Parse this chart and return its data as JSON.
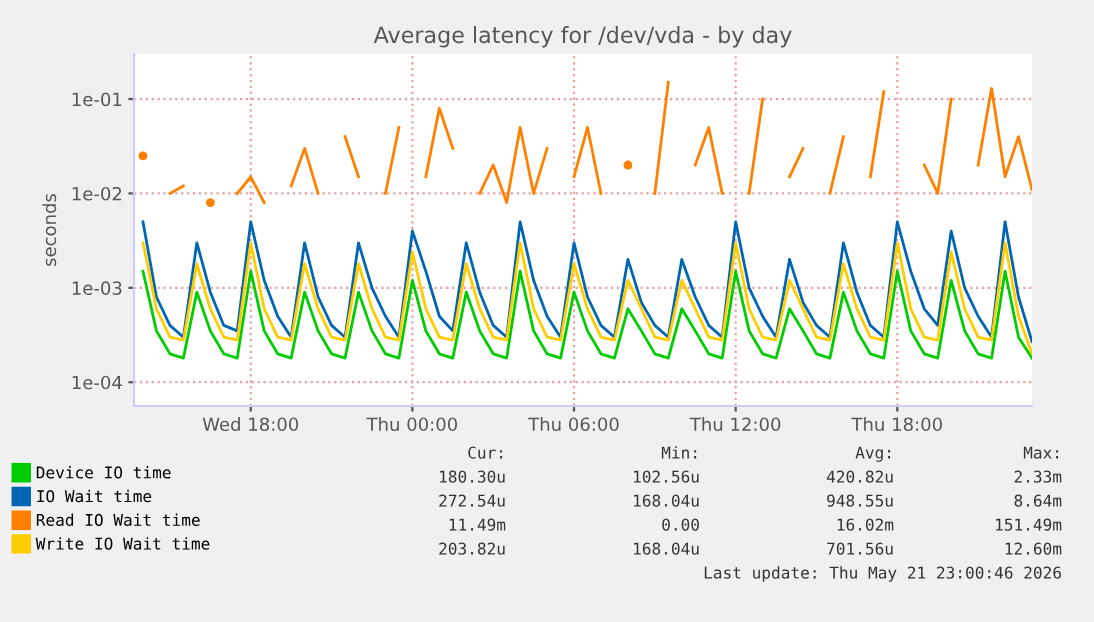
{
  "chart_data": {
    "type": "line",
    "title": "Average latency for /dev/vda - by day",
    "ylabel": "seconds",
    "log": "y",
    "grid": true,
    "legend": "bottom",
    "marker": "none",
    "line_style": "solid",
    "x": [
      "2026-05-20T14:00",
      "2026-05-20T14:30",
      "2026-05-20T15:00",
      "2026-05-20T15:30",
      "2026-05-20T16:00",
      "2026-05-20T16:30",
      "2026-05-20T17:00",
      "2026-05-20T17:30",
      "2026-05-20T18:00",
      "2026-05-20T18:30",
      "2026-05-20T19:00",
      "2026-05-20T19:30",
      "2026-05-20T20:00",
      "2026-05-20T20:30",
      "2026-05-20T21:00",
      "2026-05-20T21:30",
      "2026-05-20T22:00",
      "2026-05-20T22:30",
      "2026-05-20T23:00",
      "2026-05-20T23:30",
      "2026-05-21T00:00",
      "2026-05-21T00:30",
      "2026-05-21T01:00",
      "2026-05-21T01:30",
      "2026-05-21T02:00",
      "2026-05-21T02:30",
      "2026-05-21T03:00",
      "2026-05-21T03:30",
      "2026-05-21T04:00",
      "2026-05-21T04:30",
      "2026-05-21T05:00",
      "2026-05-21T05:30",
      "2026-05-21T06:00",
      "2026-05-21T06:30",
      "2026-05-21T07:00",
      "2026-05-21T07:30",
      "2026-05-21T08:00",
      "2026-05-21T08:30",
      "2026-05-21T09:00",
      "2026-05-21T09:30",
      "2026-05-21T10:00",
      "2026-05-21T10:30",
      "2026-05-21T11:00",
      "2026-05-21T11:30",
      "2026-05-21T12:00",
      "2026-05-21T12:30",
      "2026-05-21T13:00",
      "2026-05-21T13:30",
      "2026-05-21T14:00",
      "2026-05-21T14:30",
      "2026-05-21T15:00",
      "2026-05-21T15:30",
      "2026-05-21T16:00",
      "2026-05-21T16:30",
      "2026-05-21T17:00",
      "2026-05-21T17:30",
      "2026-05-21T18:00",
      "2026-05-21T18:30",
      "2026-05-21T19:00",
      "2026-05-21T19:30",
      "2026-05-21T20:00",
      "2026-05-21T20:30",
      "2026-05-21T21:00",
      "2026-05-21T21:30",
      "2026-05-21T22:00",
      "2026-05-21T22:30",
      "2026-05-21T23:00"
    ],
    "xlim": [
      "2026-05-20T13:40",
      "2026-05-21T23:00"
    ],
    "xticks": [
      {
        "value": "2026-05-20T18:00",
        "label": "Wed 18:00"
      },
      {
        "value": "2026-05-21T00:00",
        "label": "Thu 00:00"
      },
      {
        "value": "2026-05-21T06:00",
        "label": "Thu 06:00"
      },
      {
        "value": "2026-05-21T12:00",
        "label": "Thu 12:00"
      },
      {
        "value": "2026-05-21T18:00",
        "label": "Thu 18:00"
      }
    ],
    "ylim": [
      5.6e-05,
      0.3
    ],
    "yticks": [
      {
        "value": 0.0001,
        "label": "1e-04"
      },
      {
        "value": 0.001,
        "label": "1e-03"
      },
      {
        "value": 0.01,
        "label": "1e-02"
      },
      {
        "value": 0.1,
        "label": "1e-01"
      }
    ],
    "series": [
      {
        "name": "Device IO time",
        "color": "#00cc00",
        "values": [
          0.0015,
          0.00035,
          0.0002,
          0.00018,
          0.0009,
          0.00035,
          0.0002,
          0.00018,
          0.0015,
          0.00035,
          0.0002,
          0.00018,
          0.0009,
          0.00035,
          0.0002,
          0.00018,
          0.0009,
          0.00035,
          0.0002,
          0.00018,
          0.0012,
          0.00035,
          0.0002,
          0.00018,
          0.0009,
          0.00035,
          0.0002,
          0.00018,
          0.0015,
          0.00035,
          0.0002,
          0.00018,
          0.0009,
          0.00035,
          0.0002,
          0.00018,
          0.0006,
          0.00035,
          0.0002,
          0.00018,
          0.0006,
          0.00035,
          0.0002,
          0.00018,
          0.0015,
          0.00035,
          0.0002,
          0.00018,
          0.0006,
          0.00035,
          0.0002,
          0.00018,
          0.0009,
          0.00035,
          0.0002,
          0.00018,
          0.0015,
          0.00035,
          0.0002,
          0.00018,
          0.0012,
          0.00035,
          0.0002,
          0.00018,
          0.0015,
          0.0003,
          0.00018
        ]
      },
      {
        "name": "IO Wait time",
        "color": "#0066b3",
        "values": [
          0.005,
          0.0008,
          0.0004,
          0.0003,
          0.003,
          0.0009,
          0.0004,
          0.00035,
          0.005,
          0.0012,
          0.0005,
          0.0003,
          0.003,
          0.0008,
          0.0004,
          0.0003,
          0.003,
          0.001,
          0.0005,
          0.0003,
          0.004,
          0.0015,
          0.0005,
          0.00035,
          0.003,
          0.0009,
          0.0004,
          0.0003,
          0.005,
          0.0012,
          0.0005,
          0.0003,
          0.003,
          0.0008,
          0.0004,
          0.0003,
          0.002,
          0.0007,
          0.0004,
          0.0003,
          0.002,
          0.0008,
          0.0004,
          0.0003,
          0.005,
          0.001,
          0.0005,
          0.0003,
          0.002,
          0.0007,
          0.0004,
          0.0003,
          0.003,
          0.0009,
          0.0004,
          0.0003,
          0.005,
          0.0015,
          0.0006,
          0.0004,
          0.004,
          0.001,
          0.0005,
          0.0003,
          0.005,
          0.0008,
          0.00027
        ]
      },
      {
        "name": "Read IO Wait time",
        "color": "#ff8000",
        "values": [
          0.025,
          null,
          0.01,
          0.012,
          null,
          0.008,
          null,
          0.01,
          0.015,
          0.008,
          null,
          0.012,
          0.03,
          0.01,
          null,
          0.04,
          0.015,
          null,
          0.01,
          0.05,
          null,
          0.015,
          0.08,
          0.03,
          null,
          0.01,
          0.02,
          0.008,
          0.05,
          0.01,
          0.03,
          null,
          0.015,
          0.05,
          0.01,
          null,
          0.02,
          null,
          0.01,
          0.15,
          null,
          0.02,
          0.05,
          0.01,
          null,
          0.01,
          0.1,
          null,
          0.015,
          0.03,
          null,
          0.01,
          0.04,
          null,
          0.015,
          0.12,
          null,
          null,
          0.02,
          0.01,
          0.1,
          null,
          0.02,
          0.13,
          0.015,
          0.04,
          0.011
        ]
      },
      {
        "name": "Write IO Wait time",
        "color": "#ffcc00",
        "values": [
          0.003,
          0.0006,
          0.0003,
          0.00028,
          0.0018,
          0.0006,
          0.0003,
          0.00028,
          0.003,
          0.0006,
          0.0003,
          0.00028,
          0.0018,
          0.0006,
          0.0003,
          0.00028,
          0.0018,
          0.0006,
          0.0003,
          0.00028,
          0.0024,
          0.0006,
          0.0003,
          0.00028,
          0.0018,
          0.0006,
          0.0003,
          0.00028,
          0.003,
          0.0006,
          0.0003,
          0.00028,
          0.0018,
          0.0006,
          0.0003,
          0.00028,
          0.0012,
          0.0006,
          0.0003,
          0.00028,
          0.0012,
          0.0006,
          0.0003,
          0.00028,
          0.003,
          0.0006,
          0.0003,
          0.00028,
          0.0012,
          0.0006,
          0.0003,
          0.00028,
          0.0018,
          0.0006,
          0.0003,
          0.00028,
          0.003,
          0.0006,
          0.0003,
          0.00028,
          0.0024,
          0.0006,
          0.0003,
          0.00028,
          0.003,
          0.0005,
          0.0002
        ]
      }
    ],
    "annotations": [
      "Cur:",
      "Min:",
      "Avg:",
      "Max:",
      "180.30u",
      "102.56u",
      "420.82u",
      "2.33m",
      "272.54u",
      "168.04u",
      "948.55u",
      "8.64m",
      "11.49m",
      "0.00",
      "16.02m",
      "151.49m",
      "203.82u",
      "168.04u",
      "701.56u",
      "12.60m",
      "Last update: Thu May 21 23:00:46 2026"
    ]
  }
}
